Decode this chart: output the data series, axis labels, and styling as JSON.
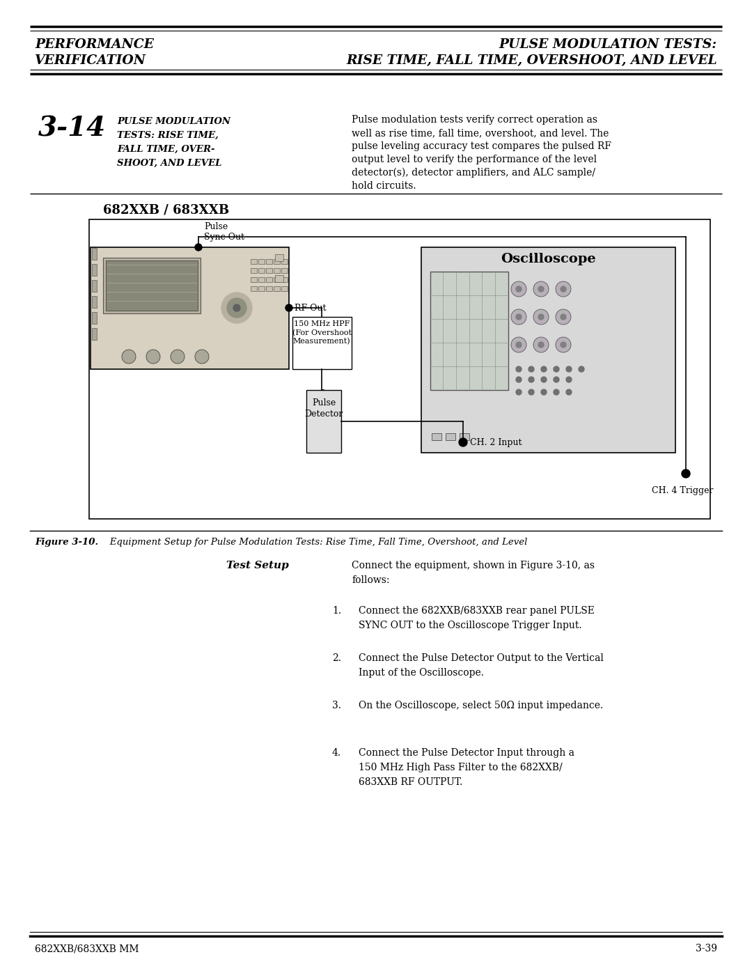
{
  "page_width": 10.8,
  "page_height": 13.97,
  "bg_color": "#ffffff",
  "header": {
    "left_line1": "PERFORMANCE",
    "left_line2": "VERIFICATION",
    "right_line1": "PULSE MODULATION TESTS:",
    "right_line2": "RISE TIME, FALL TIME, OVERSHOOT, AND LEVEL"
  },
  "section_number": "3-14",
  "section_title_lines": [
    "PULSE MODULATION",
    "TESTS: RISE TIME,",
    "FALL TIME, OVER-",
    "SHOOT, AND LEVEL"
  ],
  "section_body_lines": [
    "Pulse modulation tests verify correct operation as",
    "well as rise time, fall time, overshoot, and level. The",
    "pulse leveling accuracy test compares the pulsed RF",
    "output level to verify the performance of the level",
    "detector(s), detector amplifiers, and ALC sample/",
    "hold circuits."
  ],
  "subsection_title": "682XXB / 683XXB",
  "pulse_sync_label": "Pulse\nSync Out",
  "rf_out_label": "RF Out",
  "hpf_label": "150 MHz HPF\n(For Overshoot\nMeasurement)",
  "pd_label": "Pulse\nDetector",
  "osc_label": "Oscilloscope",
  "ch2_label": "CH. 2 Input",
  "ch4_label": "CH. 4 Trigger",
  "figure_caption_bold": "Figure 3-10.",
  "figure_caption_rest": "   Equipment Setup for Pulse Modulation Tests: Rise Time, Fall Time, Overshoot, and Level",
  "test_setup_label": "Test Setup",
  "test_setup_intro": "Connect the equipment, shown in Figure 3-10, as\nfollows:",
  "steps": [
    "Connect the 682XXB/683XXB rear panel PULSE\nSYNC OUT to the Oscilloscope Trigger Input.",
    "Connect the Pulse Detector Output to the Vertical\nInput of the Oscilloscope.",
    "On the Oscilloscope, select 50Ω input impedance.",
    "Connect the Pulse Detector Input through a\n150 MHz High Pass Filter to the 682XXB/\n683XXB RF OUTPUT."
  ],
  "footer_left": "682XXB/683XXB MM",
  "footer_right": "3-39"
}
